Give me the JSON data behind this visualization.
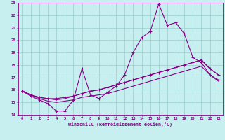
{
  "xlabel": "Windchill (Refroidissement éolien,°C)",
  "background_color": "#c8efef",
  "line_color": "#880088",
  "grid_color": "#99cccc",
  "xlim": [
    -0.5,
    23.5
  ],
  "ylim": [
    14,
    23
  ],
  "xticks": [
    0,
    1,
    2,
    3,
    4,
    5,
    6,
    7,
    8,
    9,
    10,
    11,
    12,
    13,
    14,
    15,
    16,
    17,
    18,
    19,
    20,
    21,
    22,
    23
  ],
  "yticks": [
    14,
    15,
    16,
    17,
    18,
    19,
    20,
    21,
    22,
    23
  ],
  "line1_x": [
    0,
    1,
    2,
    3,
    4,
    5,
    6,
    7,
    8,
    9,
    10,
    11,
    12,
    13,
    14,
    15,
    16,
    17,
    18,
    19,
    20,
    21,
    22,
    23
  ],
  "line1_y": [
    15.9,
    15.5,
    15.2,
    14.9,
    14.3,
    14.3,
    15.2,
    17.7,
    15.6,
    15.3,
    15.8,
    16.3,
    17.2,
    19.0,
    20.2,
    20.7,
    22.9,
    21.2,
    21.4,
    20.5,
    18.6,
    18.2,
    17.2,
    16.8
  ],
  "line2_x": [
    0,
    1,
    2,
    3,
    4,
    5,
    6,
    7,
    8,
    9,
    10,
    11,
    12,
    13,
    14,
    15,
    16,
    17,
    18,
    19,
    20,
    21,
    22,
    23
  ],
  "line2_y": [
    15.9,
    15.6,
    15.4,
    15.3,
    15.3,
    15.4,
    15.5,
    15.7,
    15.9,
    16.0,
    16.2,
    16.4,
    16.6,
    16.8,
    17.0,
    17.2,
    17.4,
    17.6,
    17.8,
    18.0,
    18.2,
    18.4,
    17.7,
    17.2
  ],
  "line3_x": [
    0,
    1,
    2,
    3,
    4,
    5,
    6,
    7,
    8,
    9,
    10,
    11,
    12,
    13,
    14,
    15,
    16,
    17,
    18,
    19,
    20,
    21,
    22,
    23
  ],
  "line3_y": [
    15.9,
    15.6,
    15.4,
    15.3,
    15.2,
    15.3,
    15.5,
    15.7,
    15.9,
    16.0,
    16.2,
    16.4,
    16.6,
    16.8,
    17.0,
    17.2,
    17.4,
    17.6,
    17.8,
    18.0,
    18.2,
    18.4,
    17.7,
    17.2
  ],
  "line4_x": [
    0,
    1,
    2,
    3,
    4,
    5,
    6,
    7,
    8,
    9,
    10,
    11,
    12,
    13,
    14,
    15,
    16,
    17,
    18,
    19,
    20,
    21,
    22,
    23
  ],
  "line4_y": [
    15.9,
    15.6,
    15.3,
    15.1,
    15.0,
    15.1,
    15.2,
    15.4,
    15.5,
    15.6,
    15.7,
    15.9,
    16.1,
    16.3,
    16.5,
    16.7,
    16.9,
    17.1,
    17.3,
    17.5,
    17.7,
    17.9,
    17.2,
    16.7
  ]
}
